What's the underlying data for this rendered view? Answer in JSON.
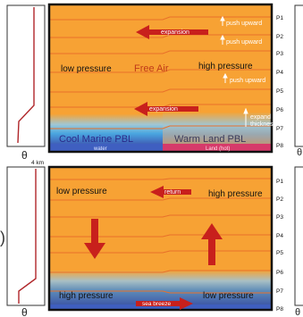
{
  "top_panel": {
    "theta_label": "θ",
    "low_pressure": "low pressure",
    "free_air": "Free Air",
    "high_pressure": "high pressure",
    "expansion_upper": "expansion",
    "expansion_lower": "expansion",
    "push_upward_1": "push upward",
    "push_upward_2": "push upward",
    "push_upward_3": "push upward",
    "expand_thickness_1": "expand",
    "expand_thickness_2": "thickness",
    "cool_marine_pbl": "Cool Marine PBL",
    "warm_land_pbl": "Warm Land PBL",
    "water": "water",
    "land_hot": "Land (hot)",
    "pressure_levels": [
      "P1",
      "P2",
      "P3",
      "P4",
      "P5",
      "P6",
      "P7",
      "P8"
    ],
    "right_theta": "θ"
  },
  "bottom_panel": {
    "height_label": "4 km",
    "theta_label": "θ",
    "low_pressure": "low pressure",
    "high_pressure": "high pressure",
    "return": "return",
    "high_pressure_low": "high pressure",
    "low_pressure_low": "low pressure",
    "sea_breeze": "sea breeze",
    "pressure_levels": [
      "P1",
      "P2",
      "P3",
      "P4",
      "P5",
      "P6",
      "P7",
      "P8"
    ],
    "right_theta": "θ",
    "paren": ")"
  },
  "colors": {
    "orange": "#f7a234",
    "isobar": "#e8702a",
    "arrow_red": "#c8201c",
    "marine_blue": "#3f5fc0",
    "profile_red": "#b0262a"
  }
}
